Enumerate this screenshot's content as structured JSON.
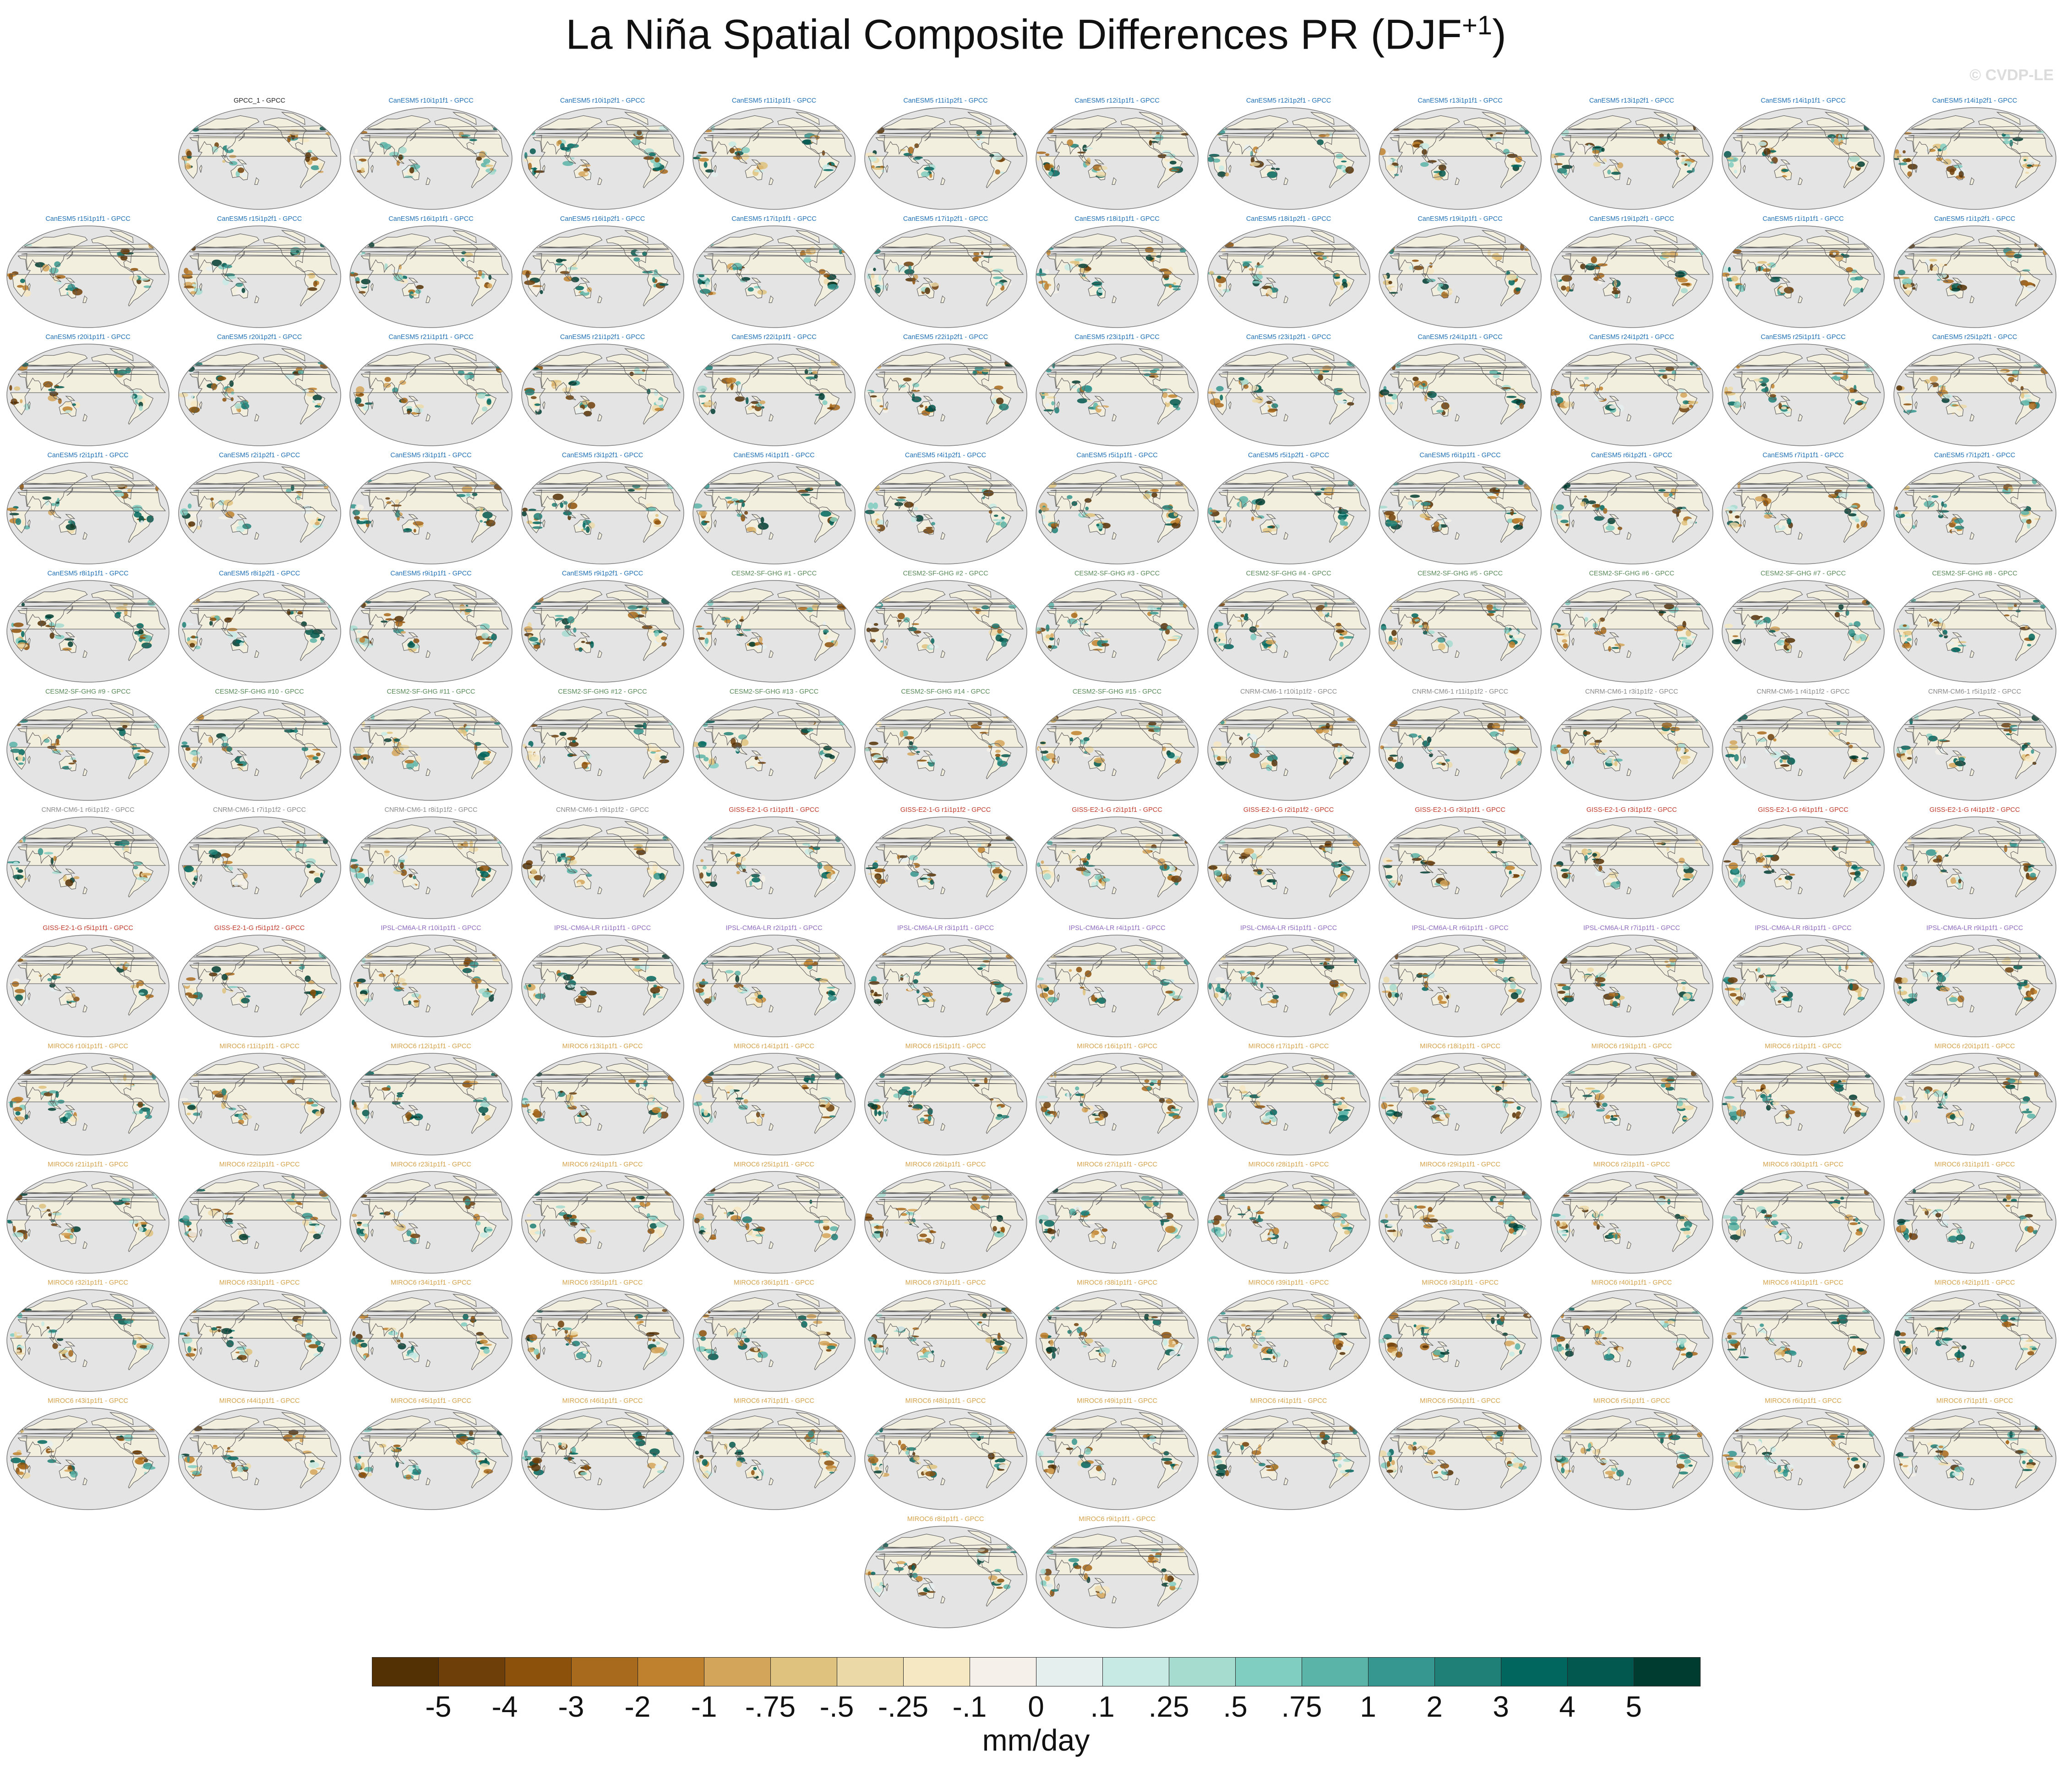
{
  "title": "La Niña Spatial Composite Differences PR (DJF",
  "title_sup": "+1",
  "title_close": ")",
  "watermark": "© CVDP-LE",
  "units": "mm/day",
  "colorbar": {
    "ticks": [
      "-5",
      "-4",
      "-3",
      "-2",
      "-1",
      "-.75",
      "-.5",
      "-.25",
      "-.1",
      "0",
      ".1",
      ".25",
      ".5",
      ".75",
      "1",
      "2",
      "3",
      "4",
      "5"
    ],
    "colors": [
      "#543005",
      "#6f3f0a",
      "#8c510a",
      "#a86a1c",
      "#bf812d",
      "#d3a55a",
      "#dfc27d",
      "#ecd9a8",
      "#f6e8c3",
      "#f5f1ea",
      "#e5efee",
      "#c7eae5",
      "#a6dbd0",
      "#80cdc1",
      "#5ab4a8",
      "#35978f",
      "#1f8077",
      "#01665e",
      "#02574e",
      "#003c30"
    ]
  },
  "colors": {
    "ocean": "#e4e4e4",
    "land": "#f3efdf",
    "coast": "#5a5a5a",
    "group_colors": {
      "obs": "#222222",
      "CanESM5": "#1f6fb5",
      "CESM2-SF-GHG": "#5a8a5a",
      "CNRM-CM6-1": "#8a8a8a",
      "GISS-E2-1-G": "#c0392b",
      "IPSL-CM6A-LR": "#8e6bbf",
      "MIROC6": "#d4a24a"
    }
  },
  "panels": [
    {
      "label": "GPCC_1 - GPCC",
      "group": "obs"
    },
    {
      "label": "CanESM5 r10i1p1f1 - GPCC",
      "group": "CanESM5"
    },
    {
      "label": "CanESM5 r10i1p2f1 - GPCC",
      "group": "CanESM5"
    },
    {
      "label": "CanESM5 r11i1p1f1 - GPCC",
      "group": "CanESM5"
    },
    {
      "label": "CanESM5 r11i1p2f1 - GPCC",
      "group": "CanESM5"
    },
    {
      "label": "CanESM5 r12i1p1f1 - GPCC",
      "group": "CanESM5"
    },
    {
      "label": "CanESM5 r12i1p2f1 - GPCC",
      "group": "CanESM5"
    },
    {
      "label": "CanESM5 r13i1p1f1 - GPCC",
      "group": "CanESM5"
    },
    {
      "label": "CanESM5 r13i1p2f1 - GPCC",
      "group": "CanESM5"
    },
    {
      "label": "CanESM5 r14i1p1f1 - GPCC",
      "group": "CanESM5"
    },
    {
      "label": "CanESM5 r14i1p2f1 - GPCC",
      "group": "CanESM5"
    },
    {
      "label": "CanESM5 r15i1p1f1 - GPCC",
      "group": "CanESM5"
    },
    {
      "label": "CanESM5 r15i1p2f1 - GPCC",
      "group": "CanESM5"
    },
    {
      "label": "CanESM5 r16i1p1f1 - GPCC",
      "group": "CanESM5"
    },
    {
      "label": "CanESM5 r16i1p2f1 - GPCC",
      "group": "CanESM5"
    },
    {
      "label": "CanESM5 r17i1p1f1 - GPCC",
      "group": "CanESM5"
    },
    {
      "label": "CanESM5 r17i1p2f1 - GPCC",
      "group": "CanESM5"
    },
    {
      "label": "CanESM5 r18i1p1f1 - GPCC",
      "group": "CanESM5"
    },
    {
      "label": "CanESM5 r18i1p2f1 - GPCC",
      "group": "CanESM5"
    },
    {
      "label": "CanESM5 r19i1p1f1 - GPCC",
      "group": "CanESM5"
    },
    {
      "label": "CanESM5 r19i1p2f1 - GPCC",
      "group": "CanESM5"
    },
    {
      "label": "CanESM5 r1i1p1f1 - GPCC",
      "group": "CanESM5"
    },
    {
      "label": "CanESM5 r1i1p2f1 - GPCC",
      "group": "CanESM5"
    },
    {
      "label": "CanESM5 r20i1p1f1 - GPCC",
      "group": "CanESM5"
    },
    {
      "label": "CanESM5 r20i1p2f1 - GPCC",
      "group": "CanESM5"
    },
    {
      "label": "CanESM5 r21i1p1f1 - GPCC",
      "group": "CanESM5"
    },
    {
      "label": "CanESM5 r21i1p2f1 - GPCC",
      "group": "CanESM5"
    },
    {
      "label": "CanESM5 r22i1p1f1 - GPCC",
      "group": "CanESM5"
    },
    {
      "label": "CanESM5 r22i1p2f1 - GPCC",
      "group": "CanESM5"
    },
    {
      "label": "CanESM5 r23i1p1f1 - GPCC",
      "group": "CanESM5"
    },
    {
      "label": "CanESM5 r23i1p2f1 - GPCC",
      "group": "CanESM5"
    },
    {
      "label": "CanESM5 r24i1p1f1 - GPCC",
      "group": "CanESM5"
    },
    {
      "label": "CanESM5 r24i1p2f1 - GPCC",
      "group": "CanESM5"
    },
    {
      "label": "CanESM5 r25i1p1f1 - GPCC",
      "group": "CanESM5"
    },
    {
      "label": "CanESM5 r25i1p2f1 - GPCC",
      "group": "CanESM5"
    },
    {
      "label": "CanESM5 r2i1p1f1 - GPCC",
      "group": "CanESM5"
    },
    {
      "label": "CanESM5 r2i1p2f1 - GPCC",
      "group": "CanESM5"
    },
    {
      "label": "CanESM5 r3i1p1f1 - GPCC",
      "group": "CanESM5"
    },
    {
      "label": "CanESM5 r3i1p2f1 - GPCC",
      "group": "CanESM5"
    },
    {
      "label": "CanESM5 r4i1p1f1 - GPCC",
      "group": "CanESM5"
    },
    {
      "label": "CanESM5 r4i1p2f1 - GPCC",
      "group": "CanESM5"
    },
    {
      "label": "CanESM5 r5i1p1f1 - GPCC",
      "group": "CanESM5"
    },
    {
      "label": "CanESM5 r5i1p2f1 - GPCC",
      "group": "CanESM5"
    },
    {
      "label": "CanESM5 r6i1p1f1 - GPCC",
      "group": "CanESM5"
    },
    {
      "label": "CanESM5 r6i1p2f1 - GPCC",
      "group": "CanESM5"
    },
    {
      "label": "CanESM5 r7i1p1f1 - GPCC",
      "group": "CanESM5"
    },
    {
      "label": "CanESM5 r7i1p2f1 - GPCC",
      "group": "CanESM5"
    },
    {
      "label": "CanESM5 r8i1p1f1 - GPCC",
      "group": "CanESM5"
    },
    {
      "label": "CanESM5 r8i1p2f1 - GPCC",
      "group": "CanESM5"
    },
    {
      "label": "CanESM5 r9i1p1f1 - GPCC",
      "group": "CanESM5"
    },
    {
      "label": "CanESM5 r9i1p2f1 - GPCC",
      "group": "CanESM5"
    },
    {
      "label": "CESM2-SF-GHG #1 - GPCC",
      "group": "CESM2-SF-GHG"
    },
    {
      "label": "CESM2-SF-GHG #2 - GPCC",
      "group": "CESM2-SF-GHG"
    },
    {
      "label": "CESM2-SF-GHG #3 - GPCC",
      "group": "CESM2-SF-GHG"
    },
    {
      "label": "CESM2-SF-GHG #4 - GPCC",
      "group": "CESM2-SF-GHG"
    },
    {
      "label": "CESM2-SF-GHG #5 - GPCC",
      "group": "CESM2-SF-GHG"
    },
    {
      "label": "CESM2-SF-GHG #6 - GPCC",
      "group": "CESM2-SF-GHG"
    },
    {
      "label": "CESM2-SF-GHG #7 - GPCC",
      "group": "CESM2-SF-GHG"
    },
    {
      "label": "CESM2-SF-GHG #8 - GPCC",
      "group": "CESM2-SF-GHG"
    },
    {
      "label": "CESM2-SF-GHG #9 - GPCC",
      "group": "CESM2-SF-GHG"
    },
    {
      "label": "CESM2-SF-GHG #10 - GPCC",
      "group": "CESM2-SF-GHG"
    },
    {
      "label": "CESM2-SF-GHG #11 - GPCC",
      "group": "CESM2-SF-GHG"
    },
    {
      "label": "CESM2-SF-GHG #12 - GPCC",
      "group": "CESM2-SF-GHG"
    },
    {
      "label": "CESM2-SF-GHG #13 - GPCC",
      "group": "CESM2-SF-GHG"
    },
    {
      "label": "CESM2-SF-GHG #14 - GPCC",
      "group": "CESM2-SF-GHG"
    },
    {
      "label": "CESM2-SF-GHG #15 - GPCC",
      "group": "CESM2-SF-GHG"
    },
    {
      "label": "CNRM-CM6-1 r10i1p1f2 - GPCC",
      "group": "CNRM-CM6-1"
    },
    {
      "label": "CNRM-CM6-1 r11i1p1f2 - GPCC",
      "group": "CNRM-CM6-1"
    },
    {
      "label": "CNRM-CM6-1 r3i1p1f2 - GPCC",
      "group": "CNRM-CM6-1"
    },
    {
      "label": "CNRM-CM6-1 r4i1p1f2 - GPCC",
      "group": "CNRM-CM6-1"
    },
    {
      "label": "CNRM-CM6-1 r5i1p1f2 - GPCC",
      "group": "CNRM-CM6-1"
    },
    {
      "label": "CNRM-CM6-1 r6i1p1f2 - GPCC",
      "group": "CNRM-CM6-1"
    },
    {
      "label": "CNRM-CM6-1 r7i1p1f2 - GPCC",
      "group": "CNRM-CM6-1"
    },
    {
      "label": "CNRM-CM6-1 r8i1p1f2 - GPCC",
      "group": "CNRM-CM6-1"
    },
    {
      "label": "CNRM-CM6-1 r9i1p1f2 - GPCC",
      "group": "CNRM-CM6-1"
    },
    {
      "label": "GISS-E2-1-G r1i1p1f1 - GPCC",
      "group": "GISS-E2-1-G"
    },
    {
      "label": "GISS-E2-1-G r1i1p1f2 - GPCC",
      "group": "GISS-E2-1-G"
    },
    {
      "label": "GISS-E2-1-G r2i1p1f1 - GPCC",
      "group": "GISS-E2-1-G"
    },
    {
      "label": "GISS-E2-1-G r2i1p1f2 - GPCC",
      "group": "GISS-E2-1-G"
    },
    {
      "label": "GISS-E2-1-G r3i1p1f1 - GPCC",
      "group": "GISS-E2-1-G"
    },
    {
      "label": "GISS-E2-1-G r3i1p1f2 - GPCC",
      "group": "GISS-E2-1-G"
    },
    {
      "label": "GISS-E2-1-G r4i1p1f1 - GPCC",
      "group": "GISS-E2-1-G"
    },
    {
      "label": "GISS-E2-1-G r4i1p1f2 - GPCC",
      "group": "GISS-E2-1-G"
    },
    {
      "label": "GISS-E2-1-G r5i1p1f1 - GPCC",
      "group": "GISS-E2-1-G"
    },
    {
      "label": "GISS-E2-1-G r5i1p1f2 - GPCC",
      "group": "GISS-E2-1-G"
    },
    {
      "label": "IPSL-CM6A-LR r10i1p1f1 - GPCC",
      "group": "IPSL-CM6A-LR"
    },
    {
      "label": "IPSL-CM6A-LR r1i1p1f1 - GPCC",
      "group": "IPSL-CM6A-LR"
    },
    {
      "label": "IPSL-CM6A-LR r2i1p1f1 - GPCC",
      "group": "IPSL-CM6A-LR"
    },
    {
      "label": "IPSL-CM6A-LR r3i1p1f1 - GPCC",
      "group": "IPSL-CM6A-LR"
    },
    {
      "label": "IPSL-CM6A-LR r4i1p1f1 - GPCC",
      "group": "IPSL-CM6A-LR"
    },
    {
      "label": "IPSL-CM6A-LR r5i1p1f1 - GPCC",
      "group": "IPSL-CM6A-LR"
    },
    {
      "label": "IPSL-CM6A-LR r6i1p1f1 - GPCC",
      "group": "IPSL-CM6A-LR"
    },
    {
      "label": "IPSL-CM6A-LR r7i1p1f1 - GPCC",
      "group": "IPSL-CM6A-LR"
    },
    {
      "label": "IPSL-CM6A-LR r8i1p1f1 - GPCC",
      "group": "IPSL-CM6A-LR"
    },
    {
      "label": "IPSL-CM6A-LR r9i1p1f1 - GPCC",
      "group": "IPSL-CM6A-LR"
    },
    {
      "label": "MIROC6 r10i1p1f1 - GPCC",
      "group": "MIROC6"
    },
    {
      "label": "MIROC6 r11i1p1f1 - GPCC",
      "group": "MIROC6"
    },
    {
      "label": "MIROC6 r12i1p1f1 - GPCC",
      "group": "MIROC6"
    },
    {
      "label": "MIROC6 r13i1p1f1 - GPCC",
      "group": "MIROC6"
    },
    {
      "label": "MIROC6 r14i1p1f1 - GPCC",
      "group": "MIROC6"
    },
    {
      "label": "MIROC6 r15i1p1f1 - GPCC",
      "group": "MIROC6"
    },
    {
      "label": "MIROC6 r16i1p1f1 - GPCC",
      "group": "MIROC6"
    },
    {
      "label": "MIROC6 r17i1p1f1 - GPCC",
      "group": "MIROC6"
    },
    {
      "label": "MIROC6 r18i1p1f1 - GPCC",
      "group": "MIROC6"
    },
    {
      "label": "MIROC6 r19i1p1f1 - GPCC",
      "group": "MIROC6"
    },
    {
      "label": "MIROC6 r1i1p1f1 - GPCC",
      "group": "MIROC6"
    },
    {
      "label": "MIROC6 r20i1p1f1 - GPCC",
      "group": "MIROC6"
    },
    {
      "label": "MIROC6 r21i1p1f1 - GPCC",
      "group": "MIROC6"
    },
    {
      "label": "MIROC6 r22i1p1f1 - GPCC",
      "group": "MIROC6"
    },
    {
      "label": "MIROC6 r23i1p1f1 - GPCC",
      "group": "MIROC6"
    },
    {
      "label": "MIROC6 r24i1p1f1 - GPCC",
      "group": "MIROC6"
    },
    {
      "label": "MIROC6 r25i1p1f1 - GPCC",
      "group": "MIROC6"
    },
    {
      "label": "MIROC6 r26i1p1f1 - GPCC",
      "group": "MIROC6"
    },
    {
      "label": "MIROC6 r27i1p1f1 - GPCC",
      "group": "MIROC6"
    },
    {
      "label": "MIROC6 r28i1p1f1 - GPCC",
      "group": "MIROC6"
    },
    {
      "label": "MIROC6 r29i1p1f1 - GPCC",
      "group": "MIROC6"
    },
    {
      "label": "MIROC6 r2i1p1f1 - GPCC",
      "group": "MIROC6"
    },
    {
      "label": "MIROC6 r30i1p1f1 - GPCC",
      "group": "MIROC6"
    },
    {
      "label": "MIROC6 r31i1p1f1 - GPCC",
      "group": "MIROC6"
    },
    {
      "label": "MIROC6 r32i1p1f1 - GPCC",
      "group": "MIROC6"
    },
    {
      "label": "MIROC6 r33i1p1f1 - GPCC",
      "group": "MIROC6"
    },
    {
      "label": "MIROC6 r34i1p1f1 - GPCC",
      "group": "MIROC6"
    },
    {
      "label": "MIROC6 r35i1p1f1 - GPCC",
      "group": "MIROC6"
    },
    {
      "label": "MIROC6 r36i1p1f1 - GPCC",
      "group": "MIROC6"
    },
    {
      "label": "MIROC6 r37i1p1f1 - GPCC",
      "group": "MIROC6"
    },
    {
      "label": "MIROC6 r38i1p1f1 - GPCC",
      "group": "MIROC6"
    },
    {
      "label": "MIROC6 r39i1p1f1 - GPCC",
      "group": "MIROC6"
    },
    {
      "label": "MIROC6 r3i1p1f1 - GPCC",
      "group": "MIROC6"
    },
    {
      "label": "MIROC6 r40i1p1f1 - GPCC",
      "group": "MIROC6"
    },
    {
      "label": "MIROC6 r41i1p1f1 - GPCC",
      "group": "MIROC6"
    },
    {
      "label": "MIROC6 r42i1p1f1 - GPCC",
      "group": "MIROC6"
    },
    {
      "label": "MIROC6 r43i1p1f1 - GPCC",
      "group": "MIROC6"
    },
    {
      "label": "MIROC6 r44i1p1f1 - GPCC",
      "group": "MIROC6"
    },
    {
      "label": "MIROC6 r45i1p1f1 - GPCC",
      "group": "MIROC6"
    },
    {
      "label": "MIROC6 r46i1p1f1 - GPCC",
      "group": "MIROC6"
    },
    {
      "label": "MIROC6 r47i1p1f1 - GPCC",
      "group": "MIROC6"
    },
    {
      "label": "MIROC6 r48i1p1f1 - GPCC",
      "group": "MIROC6"
    },
    {
      "label": "MIROC6 r49i1p1f1 - GPCC",
      "group": "MIROC6"
    },
    {
      "label": "MIROC6 r4i1p1f1 - GPCC",
      "group": "MIROC6"
    },
    {
      "label": "MIROC6 r50i1p1f1 - GPCC",
      "group": "MIROC6"
    },
    {
      "label": "MIROC6 r5i1p1f1 - GPCC",
      "group": "MIROC6"
    },
    {
      "label": "MIROC6 r6i1p1f1 - GPCC",
      "group": "MIROC6"
    },
    {
      "label": "MIROC6 r7i1p1f1 - GPCC",
      "group": "MIROC6"
    },
    {
      "label": "MIROC6 r8i1p1f1 - GPCC",
      "group": "MIROC6"
    },
    {
      "label": "MIROC6 r9i1p1f1 - GPCC",
      "group": "MIROC6"
    }
  ]
}
